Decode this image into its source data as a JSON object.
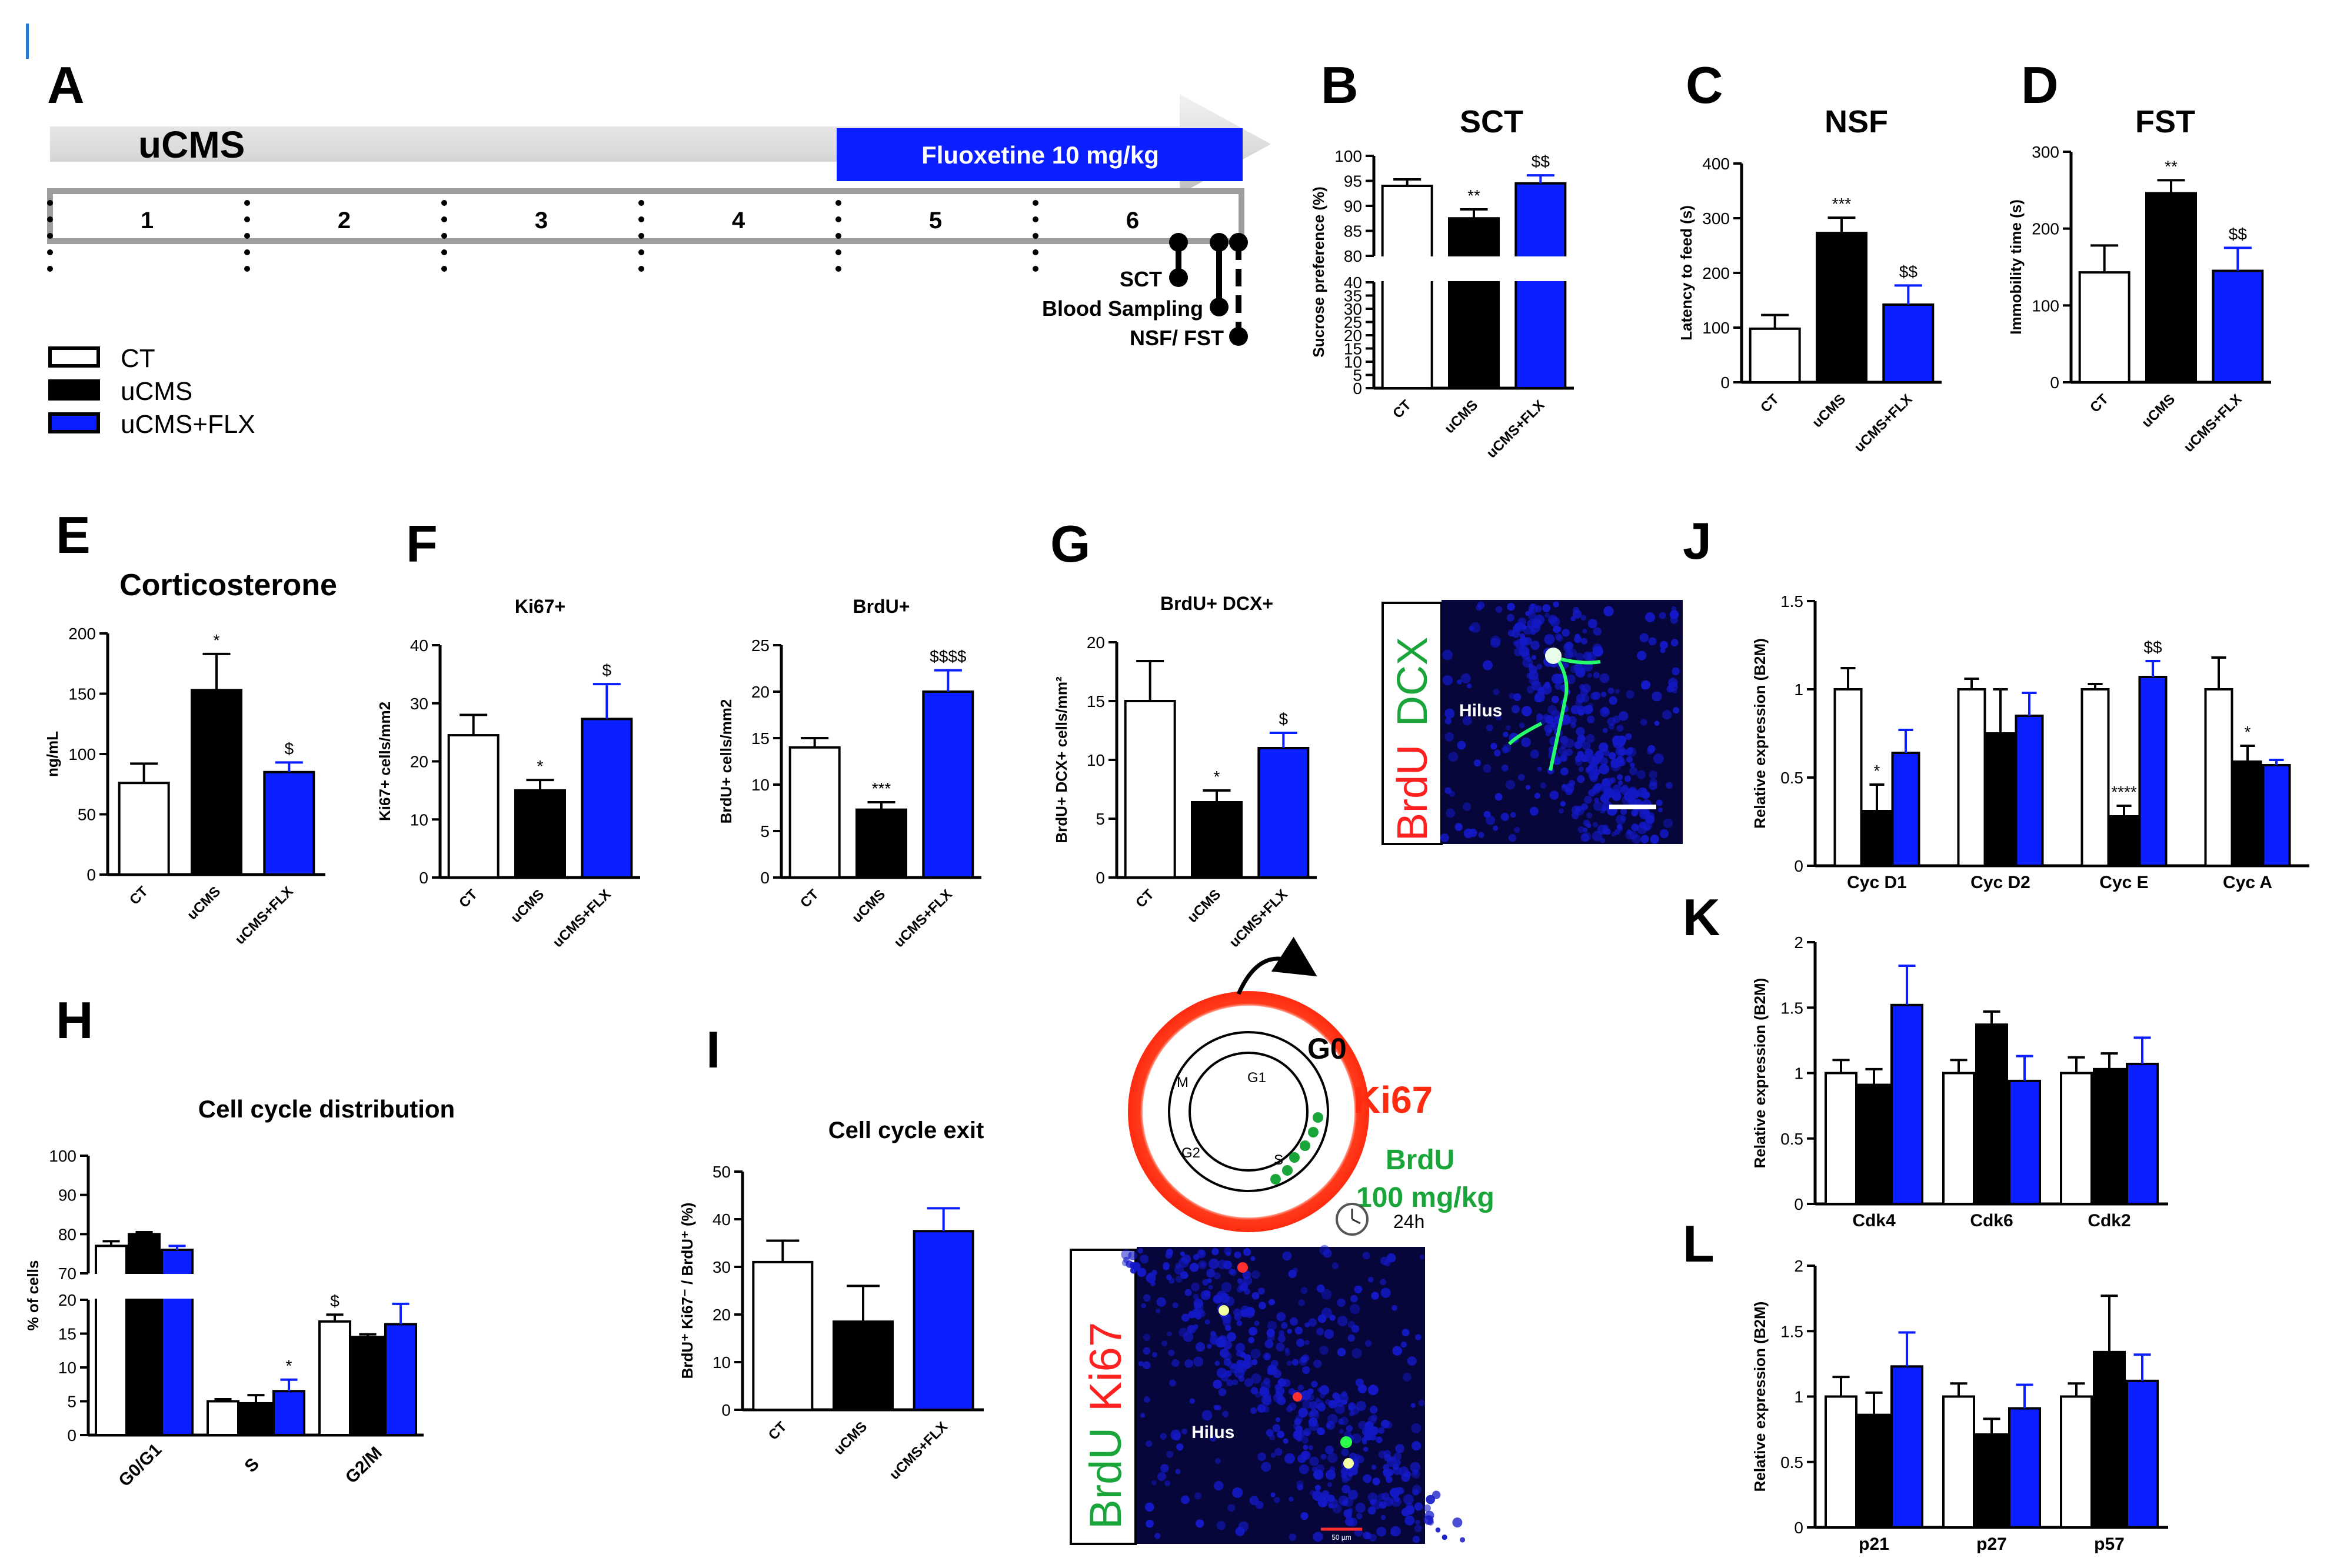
{
  "colors": {
    "ct": "#ffffff",
    "ucms": "#000000",
    "flx": "#0b1eff",
    "mic_bg": "#06063a",
    "mic_nuc": "#1419c8",
    "ring": "#ff2b10",
    "green": "#1aa53a"
  },
  "timeline": {
    "panel_letter": "A",
    "arrow_label": "uCMS",
    "drug_label": "Fluoxetine 10 mg/kg",
    "weeks": [
      "1",
      "2",
      "3",
      "4",
      "5",
      "6"
    ],
    "events": [
      "SCT",
      "Blood Sampling",
      "NSF/ FST"
    ]
  },
  "legend": {
    "items": [
      "CT",
      "uCMS",
      "uCMS+FLX"
    ]
  },
  "panels": {
    "B": {
      "letter": "B",
      "title": "SCT"
    },
    "C": {
      "letter": "C",
      "title": "NSF"
    },
    "D": {
      "letter": "D",
      "title": "FST"
    },
    "E": {
      "letter": "E",
      "title": "Corticosterone"
    },
    "F": {
      "letter": "F"
    },
    "G": {
      "letter": "G"
    },
    "H": {
      "letter": "H",
      "title": "Cell cycle distribution"
    },
    "I": {
      "letter": "I",
      "title": "Cell cycle exit"
    },
    "J": {
      "letter": "J"
    },
    "K": {
      "letter": "K"
    },
    "L": {
      "letter": "L"
    }
  },
  "micrographs": {
    "g": {
      "label_red": "BrdU",
      "label_green": "DCX",
      "region": "Hilus"
    },
    "i": {
      "label_green": "BrdU",
      "label_red": "Ki67",
      "region": "Hilus",
      "scale": "50 µm"
    }
  },
  "cycle_diagram": {
    "g0": "G0",
    "ki67": "Ki67",
    "brdu": "BrdU",
    "dose": "100 mg/kg",
    "time": "24h",
    "phases": [
      "G1",
      "S",
      "G2",
      "M"
    ]
  },
  "chart_data": [
    {
      "id": "B",
      "type": "bar",
      "title": "SCT",
      "ylabel": "Sucrose preference (%)",
      "categories": [
        "CT",
        "uCMS",
        "uCMS+FLX"
      ],
      "values": [
        94,
        87.5,
        94.5
      ],
      "errors": [
        1.3,
        1.8,
        1.6
      ],
      "annotations": [
        "",
        "**",
        "$$"
      ],
      "ylim": [
        0,
        100
      ],
      "broken_axis": {
        "low_max": 40,
        "high_min": 80
      },
      "yticks_low": [
        0,
        5,
        10,
        15,
        20,
        25,
        30,
        35,
        40
      ],
      "yticks_high": [
        80,
        85,
        90,
        95,
        100
      ]
    },
    {
      "id": "C",
      "type": "bar",
      "title": "NSF",
      "ylabel": "Latency to feed (s)",
      "categories": [
        "CT",
        "uCMS",
        "uCMS+FLX"
      ],
      "values": [
        98,
        273,
        142
      ],
      "errors": [
        25,
        28,
        35
      ],
      "annotations": [
        "",
        "***",
        "$$"
      ],
      "ylim": [
        0,
        400
      ],
      "yticks": [
        0,
        100,
        200,
        300,
        400
      ]
    },
    {
      "id": "D",
      "type": "bar",
      "title": "FST",
      "ylabel": "Immobility time (s)",
      "categories": [
        "CT",
        "uCMS",
        "uCMS+FLX"
      ],
      "values": [
        143,
        246,
        145
      ],
      "errors": [
        35,
        17,
        30
      ],
      "annotations": [
        "",
        "**",
        "$$"
      ],
      "ylim": [
        0,
        300
      ],
      "yticks": [
        0,
        100,
        200,
        300
      ]
    },
    {
      "id": "E",
      "type": "bar",
      "title": "Corticosterone",
      "ylabel": "ng/mL",
      "categories": [
        "CT",
        "uCMS",
        "uCMS+FLX"
      ],
      "values": [
        76,
        153,
        85
      ],
      "errors": [
        16,
        30,
        8
      ],
      "annotations": [
        "",
        "*",
        "$"
      ],
      "ylim": [
        0,
        200
      ],
      "yticks": [
        0,
        50,
        100,
        150,
        200
      ]
    },
    {
      "id": "F1",
      "type": "bar",
      "title": "Ki67+",
      "ylabel": "Ki67+ cells/mm2",
      "categories": [
        "CT",
        "uCMS",
        "uCMS+FLX"
      ],
      "values": [
        24.5,
        15,
        27.3
      ],
      "errors": [
        3.5,
        1.8,
        6
      ],
      "annotations": [
        "",
        "*",
        "$"
      ],
      "ylim": [
        0,
        40
      ],
      "yticks": [
        0,
        10,
        20,
        30,
        40
      ]
    },
    {
      "id": "F2",
      "type": "bar",
      "title": "BrdU+",
      "ylabel": "BrdU+ cells/mm2",
      "categories": [
        "CT",
        "uCMS",
        "uCMS+FLX"
      ],
      "values": [
        14,
        7.3,
        20
      ],
      "errors": [
        1,
        0.8,
        2.3
      ],
      "annotations": [
        "",
        "***",
        "$$$$"
      ],
      "ylim": [
        0,
        25
      ],
      "yticks": [
        0,
        5,
        10,
        15,
        20,
        25
      ]
    },
    {
      "id": "G",
      "type": "bar",
      "title": "BrdU+ DCX+",
      "ylabel": "BrdU+ DCX+ cells/mm²",
      "categories": [
        "CT",
        "uCMS",
        "uCMS+FLX"
      ],
      "values": [
        15,
        6.4,
        11
      ],
      "errors": [
        3.4,
        1,
        1.3
      ],
      "annotations": [
        "",
        "*",
        "$"
      ],
      "ylim": [
        0,
        20
      ],
      "yticks": [
        0,
        5,
        10,
        15,
        20
      ]
    },
    {
      "id": "H",
      "type": "bar",
      "title": "Cell cycle distribution",
      "ylabel": "% of cells",
      "categories": [
        "G0/G1",
        "S",
        "G2/M"
      ],
      "series": [
        {
          "name": "CT",
          "values": [
            77,
            5,
            16.8
          ],
          "errors": [
            1.2,
            0.3,
            1
          ]
        },
        {
          "name": "uCMS",
          "values": [
            80,
            4.7,
            14.5
          ],
          "errors": [
            0.5,
            1.2,
            0.4
          ]
        },
        {
          "name": "uCMS+FLX",
          "values": [
            76,
            6.5,
            16.4
          ],
          "errors": [
            1,
            1.7,
            3
          ]
        }
      ],
      "annotations": [
        [
          "",
          "",
          "$"
        ],
        [
          "",
          "",
          ""
        ],
        [
          "",
          "*",
          ""
        ]
      ],
      "ylim": [
        0,
        100
      ],
      "broken_axis": {
        "low_max": 20,
        "high_min": 70
      },
      "yticks_low": [
        0,
        5,
        10,
        15,
        20
      ],
      "yticks_high": [
        70,
        80,
        90,
        100
      ]
    },
    {
      "id": "I",
      "type": "bar",
      "title": "Cell cycle exit",
      "ylabel": "BrdU⁺ Ki67⁻ / BrdU⁺ (%)",
      "categories": [
        "CT",
        "uCMS",
        "uCMS+FLX"
      ],
      "values": [
        31,
        18.5,
        37.5
      ],
      "errors": [
        4.5,
        7.5,
        4.8
      ],
      "annotations": [
        "",
        "",
        ""
      ],
      "ylim": [
        0,
        50
      ],
      "yticks": [
        0,
        10,
        20,
        30,
        40,
        50
      ]
    },
    {
      "id": "J",
      "type": "bar",
      "ylabel": "Relative expression (B2M)",
      "categories": [
        "Cyc D1",
        "Cyc D2",
        "Cyc E",
        "Cyc A"
      ],
      "series": [
        {
          "name": "CT",
          "values": [
            1,
            1,
            1,
            1
          ],
          "errors": [
            0.12,
            0.06,
            0.03,
            0.18
          ]
        },
        {
          "name": "uCMS",
          "values": [
            0.31,
            0.75,
            0.28,
            0.59
          ],
          "errors": [
            0.15,
            0.25,
            0.06,
            0.09
          ]
        },
        {
          "name": "uCMS+FLX",
          "values": [
            0.64,
            0.85,
            1.07,
            0.57
          ],
          "errors": [
            0.13,
            0.13,
            0.09,
            0.03
          ]
        }
      ],
      "annotations": [
        [
          "",
          "",
          "",
          ""
        ],
        [
          "*",
          "",
          "****",
          "*"
        ],
        [
          "",
          "",
          "$$",
          ""
        ]
      ],
      "ylim": [
        0,
        1.5
      ],
      "yticks": [
        0,
        0.5,
        1,
        1.5
      ]
    },
    {
      "id": "K",
      "type": "bar",
      "ylabel": "Relative expression (B2M)",
      "categories": [
        "Cdk4",
        "Cdk6",
        "Cdk2"
      ],
      "series": [
        {
          "name": "CT",
          "values": [
            1,
            1,
            1
          ],
          "errors": [
            0.1,
            0.1,
            0.12
          ]
        },
        {
          "name": "uCMS",
          "values": [
            0.91,
            1.37,
            1.03
          ],
          "errors": [
            0.12,
            0.1,
            0.12
          ]
        },
        {
          "name": "uCMS+FLX",
          "values": [
            1.52,
            0.94,
            1.07
          ],
          "errors": [
            0.3,
            0.19,
            0.2
          ]
        }
      ],
      "annotations": [
        [
          "",
          "",
          ""
        ],
        [
          "",
          "",
          ""
        ],
        [
          "",
          "",
          ""
        ]
      ],
      "ylim": [
        0,
        2
      ],
      "yticks": [
        0,
        0.5,
        1,
        1.5,
        2
      ]
    },
    {
      "id": "L",
      "type": "bar",
      "ylabel": "Relative expression (B2M)",
      "categories": [
        "p21",
        "p27",
        "p57"
      ],
      "series": [
        {
          "name": "CT",
          "values": [
            1,
            1,
            1
          ],
          "errors": [
            0.15,
            0.1,
            0.1
          ]
        },
        {
          "name": "uCMS",
          "values": [
            0.86,
            0.71,
            1.34
          ],
          "errors": [
            0.17,
            0.12,
            0.43
          ]
        },
        {
          "name": "uCMS+FLX",
          "values": [
            1.23,
            0.91,
            1.12
          ],
          "errors": [
            0.26,
            0.18,
            0.2
          ]
        }
      ],
      "annotations": [
        [
          "",
          "",
          ""
        ],
        [
          "",
          "",
          ""
        ],
        [
          "",
          "",
          ""
        ]
      ],
      "ylim": [
        0,
        2
      ],
      "yticks": [
        0,
        0.5,
        1,
        1.5,
        2
      ]
    }
  ]
}
